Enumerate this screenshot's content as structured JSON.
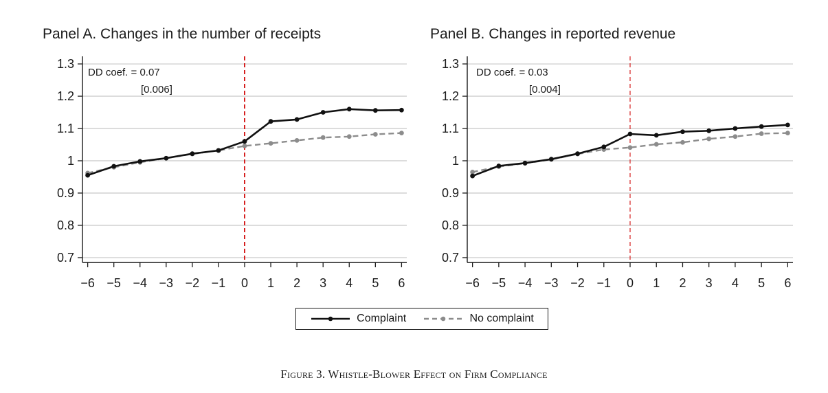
{
  "figure": {
    "caption": "Figure 3. Whistle-Blower Effect on Firm Compliance"
  },
  "legend": {
    "position": "bottom-center",
    "items": [
      {
        "label": "Complaint",
        "color": "#111111",
        "style": "solid"
      },
      {
        "label": "No complaint",
        "color": "#8c8c8c",
        "style": "dashed"
      }
    ]
  },
  "chart_data": [
    {
      "type": "line",
      "title": "Panel A. Changes in the number of receipts",
      "x": [
        -6,
        -5,
        -4,
        -3,
        -2,
        -1,
        0,
        1,
        2,
        3,
        4,
        5,
        6
      ],
      "x_tick_labels": [
        "−6",
        "−5",
        "−4",
        "−3",
        "−2",
        "−1",
        "0",
        "1",
        "2",
        "3",
        "4",
        "5",
        "6"
      ],
      "y_tick_labels": [
        "0.7",
        "0.8",
        "0.9",
        "1",
        "1.1",
        "1.2",
        "1.3"
      ],
      "y_ticks": [
        0.7,
        0.8,
        0.9,
        1.0,
        1.1,
        1.2,
        1.3
      ],
      "ylim": [
        0.685,
        1.315
      ],
      "xlim": [
        -6.2,
        6.2
      ],
      "grid": true,
      "vline": {
        "x": 0,
        "color": "#d62020",
        "style": "dashed"
      },
      "annotation": {
        "line1": "DD coef. = 0.07",
        "line2": "[0.006]"
      },
      "series": [
        {
          "name": "Complaint",
          "color": "#111111",
          "style": "solid",
          "values": [
            0.955,
            0.983,
            0.998,
            1.008,
            1.022,
            1.032,
            1.06,
            1.122,
            1.128,
            1.15,
            1.16,
            1.156,
            1.157
          ]
        },
        {
          "name": "No complaint",
          "color": "#8c8c8c",
          "style": "dashed",
          "values": [
            0.962,
            0.98,
            0.995,
            1.008,
            1.021,
            1.032,
            1.046,
            1.054,
            1.063,
            1.072,
            1.075,
            1.082,
            1.086
          ]
        }
      ]
    },
    {
      "type": "line",
      "title": "Panel B. Changes in reported revenue",
      "x": [
        -6,
        -5,
        -4,
        -3,
        -2,
        -1,
        0,
        1,
        2,
        3,
        4,
        5,
        6
      ],
      "x_tick_labels": [
        "−6",
        "−5",
        "−4",
        "−3",
        "−2",
        "−1",
        "0",
        "1",
        "2",
        "3",
        "4",
        "5",
        "6"
      ],
      "y_tick_labels": [
        "0.7",
        "0.8",
        "0.9",
        "1",
        "1.1",
        "1.2",
        "1.3"
      ],
      "y_ticks": [
        0.7,
        0.8,
        0.9,
        1.0,
        1.1,
        1.2,
        1.3
      ],
      "ylim": [
        0.685,
        1.315
      ],
      "xlim": [
        -6.2,
        6.2
      ],
      "grid": true,
      "vline": {
        "x": 0,
        "color": "#d62020",
        "style": "dashed"
      },
      "annotation": {
        "line1": "DD coef. = 0.03",
        "line2": "[0.004]"
      },
      "series": [
        {
          "name": "Complaint",
          "color": "#111111",
          "style": "solid",
          "values": [
            0.953,
            0.984,
            0.993,
            1.005,
            1.022,
            1.043,
            1.083,
            1.079,
            1.09,
            1.093,
            1.1,
            1.106,
            1.111
          ]
        },
        {
          "name": "No complaint",
          "color": "#8c8c8c",
          "style": "dashed",
          "values": [
            0.965,
            0.982,
            0.992,
            1.004,
            1.021,
            1.035,
            1.041,
            1.051,
            1.057,
            1.068,
            1.075,
            1.084,
            1.086
          ]
        }
      ]
    }
  ]
}
